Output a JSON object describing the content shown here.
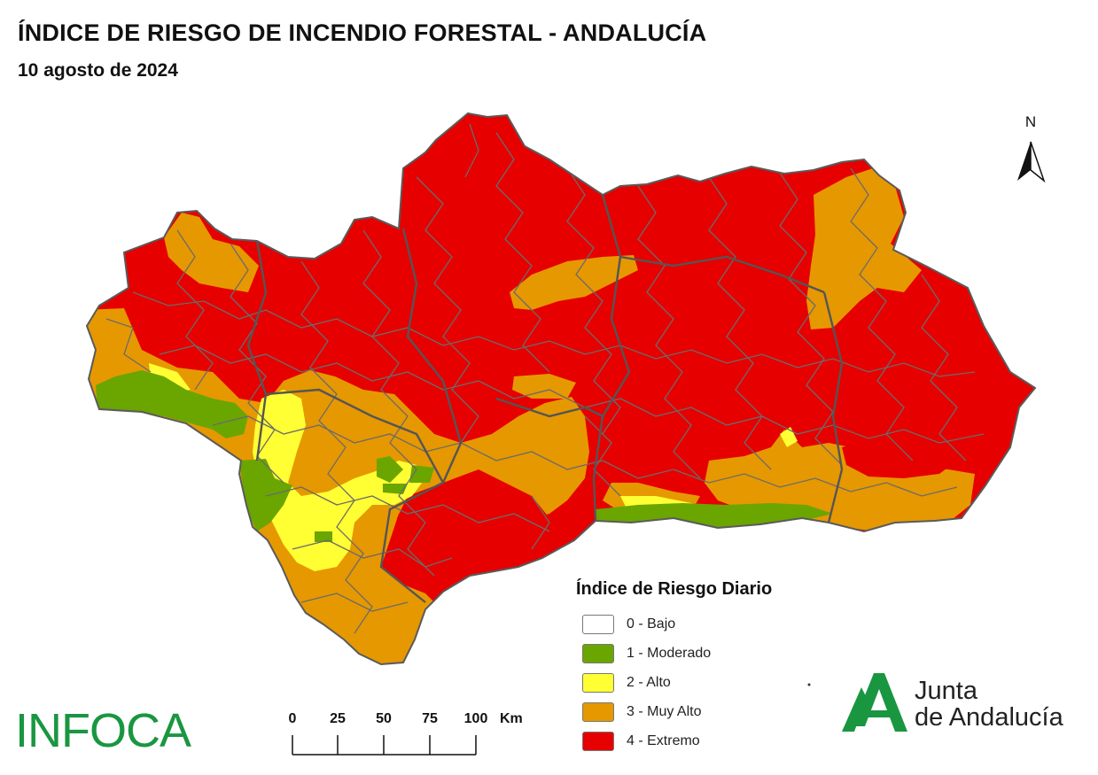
{
  "header": {
    "title": "ÍNDICE DE RIESGO DE INCENDIO FORESTAL - ANDALUCÍA",
    "date": "10 agosto de 2024"
  },
  "north_arrow": {
    "label": "N"
  },
  "legend": {
    "title": "Índice de Riesgo Diario",
    "items": [
      {
        "label": "0 - Bajo",
        "color": "#ffffff"
      },
      {
        "label": "1 - Moderado",
        "color": "#6aa500"
      },
      {
        "label": "2 - Alto",
        "color": "#ffff33"
      },
      {
        "label": "3 - Muy Alto",
        "color": "#e69800"
      },
      {
        "label": "4 - Extremo",
        "color": "#e60000"
      }
    ]
  },
  "scale_bar": {
    "ticks": [
      "0",
      "25",
      "50",
      "75",
      "100"
    ],
    "unit": "Km"
  },
  "logos": {
    "infoca": "INFOCA",
    "junta_line1": "Junta",
    "junta_line2": "de Andalucía"
  },
  "colors": {
    "bajo": "#ffffff",
    "moderado": "#6aa500",
    "alto": "#ffff33",
    "muy_alto": "#e69800",
    "extremo": "#e60000",
    "boundaries": "#6b6b6b",
    "infoca_green": "#1a9641",
    "junta_green": "#1a9641"
  }
}
